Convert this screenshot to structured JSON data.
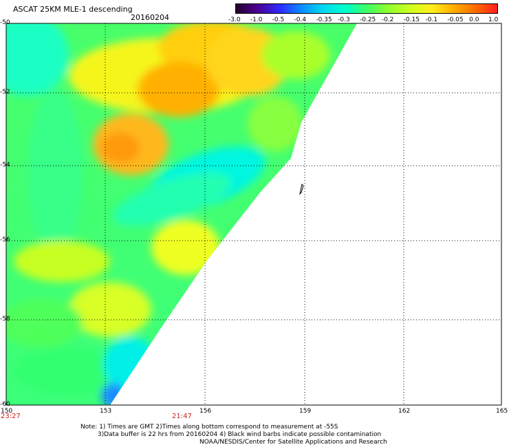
{
  "header": {
    "title": "ASCAT 25KM MLE-1 descending",
    "date": "20160204"
  },
  "colorbar": {
    "labels": [
      "-3.0",
      "-1.0",
      "-0.5",
      "-0.4",
      "-0.35",
      "-0.3",
      "-0.25",
      "-0.2",
      "-0.15",
      "-0.1",
      "-0.05",
      "0.0",
      "1.0"
    ],
    "colors": [
      "#24002a",
      "#4a0090",
      "#2e2bff",
      "#0a8cff",
      "#00d6f0",
      "#00ffcc",
      "#3dff66",
      "#8fff2e",
      "#cfff1e",
      "#ffef1a",
      "#ffb000",
      "#ff6a00",
      "#ff1e1e"
    ]
  },
  "axes": {
    "lat_labels": [
      "-50",
      "-52",
      "-54",
      "-56",
      "-58",
      "-60"
    ],
    "lon_labels": [
      "150",
      "153",
      "156",
      "159",
      "162",
      "165"
    ],
    "lat_range": [
      -60,
      -50
    ],
    "lon_range": [
      150,
      165
    ]
  },
  "times": {
    "left": "23:27",
    "middle": "21:47"
  },
  "notes": {
    "line1": "Note: 1) Times are GMT 2)Times along bottom correspond to measurement at -55S",
    "line2": "3)Data buffer is 22 hrs from 20160204 4) Black wind barbs indicate possible contamination",
    "line3": "NOAA/NESDIS/Center for Satellite Applications and Research"
  }
}
